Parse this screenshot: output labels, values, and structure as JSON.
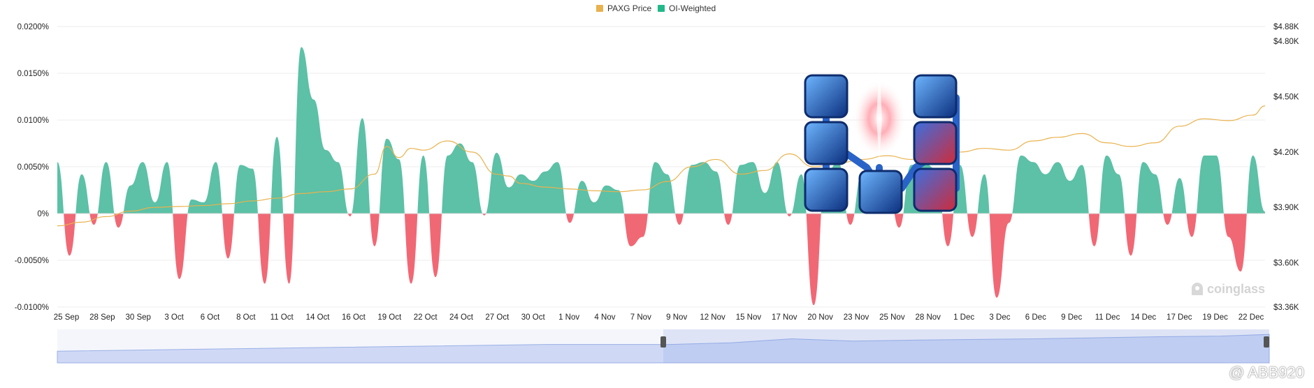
{
  "legend": {
    "price_label": "PAXG Price",
    "oi_label": "OI-Weighted"
  },
  "colors": {
    "price": "#e9b24e",
    "positive": "#5cc1a6",
    "negative": "#f16875",
    "grid": "#ececec",
    "navigator": "#cfd9f6",
    "navigator_line": "#9bb0e6"
  },
  "watermark": "coinglass",
  "credit": "@ ABB920",
  "chart_data": {
    "type": "area",
    "title": "",
    "x_ticks": [
      "25 Sep",
      "28 Sep",
      "30 Sep",
      "3 Oct",
      "6 Oct",
      "8 Oct",
      "11 Oct",
      "14 Oct",
      "16 Oct",
      "19 Oct",
      "22 Oct",
      "24 Oct",
      "27 Oct",
      "30 Oct",
      "1 Nov",
      "4 Nov",
      "7 Nov",
      "9 Nov",
      "12 Nov",
      "15 Nov",
      "17 Nov",
      "20 Nov",
      "23 Nov",
      "25 Nov",
      "28 Nov",
      "1 Dec",
      "3 Dec",
      "6 Dec",
      "9 Dec",
      "11 Dec",
      "14 Dec",
      "17 Dec",
      "19 Dec",
      "22 Dec"
    ],
    "left_axis": {
      "ticks": [
        "0.0200%",
        "0.0150%",
        "0.0100%",
        "0.0050%",
        "0%",
        "-0.0050%",
        "-0.0100%"
      ],
      "tick_values": [
        0.02,
        0.015,
        0.01,
        0.005,
        0,
        -0.005,
        -0.01
      ],
      "range": [
        -0.01,
        0.02
      ]
    },
    "right_axis": {
      "ticks": [
        "$4.88K",
        "$4.80K",
        "$4.50K",
        "$4.20K",
        "$3.90K",
        "$3.60K",
        "$3.36K"
      ],
      "tick_values": [
        4880,
        4800,
        4500,
        4200,
        3900,
        3600,
        3360
      ],
      "range": [
        3360,
        4880
      ]
    },
    "series": [
      {
        "name": "OI-Weighted",
        "axis": "left",
        "x": [
          0,
          1,
          2,
          3,
          4,
          5,
          6,
          7,
          8,
          9,
          10,
          11,
          12,
          13,
          14,
          15,
          16,
          17,
          18,
          19,
          20,
          21,
          22,
          23,
          24,
          25,
          26,
          27,
          28,
          29,
          30,
          31,
          32,
          33,
          34,
          35,
          36,
          37,
          38,
          39,
          40,
          41,
          42,
          43,
          44,
          45,
          46,
          47,
          48,
          49,
          50,
          51,
          52,
          53,
          54,
          55,
          56,
          57,
          58,
          59,
          60,
          61,
          62,
          63,
          64,
          65,
          66,
          67,
          68,
          69,
          70,
          71,
          72,
          73,
          74,
          75,
          76,
          77,
          78,
          79,
          80,
          81,
          82,
          83,
          84,
          85,
          86,
          87,
          88,
          89,
          90,
          91,
          92,
          93,
          94,
          95,
          96,
          97,
          98,
          99
        ],
        "values": [
          0.0055,
          -0.0045,
          0.0042,
          -0.0012,
          0.0055,
          -0.0015,
          0.003,
          0.0055,
          0.0012,
          0.0055,
          -0.007,
          0.0015,
          0.0012,
          0.0055,
          -0.0048,
          0.0052,
          0.0048,
          -0.0075,
          0.0082,
          -0.0075,
          0.0178,
          0.0122,
          0.0068,
          0.0055,
          -0.0003,
          0.0102,
          -0.0035,
          0.008,
          0.0058,
          -0.0075,
          0.0062,
          -0.0068,
          0.0062,
          0.0075,
          0.0055,
          -0.0002,
          0.0065,
          0.0028,
          0.0042,
          0.0035,
          0.0045,
          0.0055,
          -0.001,
          0.0035,
          0.0012,
          0.003,
          0.0025,
          -0.0035,
          -0.0025,
          0.0055,
          0.0042,
          -0.0012,
          0.0052,
          0.0055,
          0.0045,
          -0.0012,
          0.0052,
          0.0055,
          0.0022,
          0.0055,
          -0.0003,
          0.0042,
          -0.0098,
          0.0042,
          0.0055,
          -0.0012,
          0.0045,
          0.0022,
          0.0042,
          -0.0015,
          0.0052,
          0.0055,
          0.0048,
          -0.0035,
          0.0052,
          -0.0025,
          0.0042,
          -0.009,
          -0.001,
          0.0062,
          0.0055,
          0.0042,
          0.0055,
          0.0035,
          0.0052,
          -0.0035,
          0.0062,
          0.0042,
          -0.0045,
          0.0055,
          0.0042,
          -0.0012,
          0.0038,
          -0.0025,
          0.0062,
          0.0062,
          -0.0025,
          -0.0062,
          0.0062,
          0.0002
        ]
      },
      {
        "name": "PAXG Price",
        "axis": "right",
        "x": [
          0,
          2,
          4,
          6,
          8,
          10,
          12,
          14,
          16,
          18,
          20,
          22,
          24,
          26,
          27,
          28,
          29,
          30,
          32,
          34,
          36,
          37,
          38,
          40,
          42,
          44,
          46,
          48,
          50,
          52,
          54,
          56,
          58,
          60,
          62,
          64,
          66,
          68,
          70,
          72,
          74,
          76,
          78,
          80,
          82,
          84,
          86,
          88,
          90,
          92,
          94,
          96,
          98,
          99
        ],
        "values": [
          3800,
          3820,
          3850,
          3880,
          3900,
          3905,
          3910,
          3920,
          3935,
          3950,
          3975,
          3985,
          4000,
          4080,
          4230,
          4170,
          4220,
          4210,
          4260,
          4200,
          4080,
          4070,
          4030,
          4010,
          4000,
          3990,
          3985,
          3995,
          4040,
          4120,
          4160,
          4080,
          4100,
          4190,
          4120,
          4140,
          4160,
          4180,
          4160,
          4170,
          4200,
          4220,
          4210,
          4260,
          4280,
          4300,
          4250,
          4230,
          4250,
          4340,
          4380,
          4370,
          4400,
          4450
        ]
      },
      {
        "name": "Navigator",
        "axis": "nav",
        "x": [
          0,
          10,
          20,
          30,
          40,
          50,
          55,
          60,
          65,
          70,
          75,
          80,
          85,
          90,
          95,
          99
        ],
        "values": [
          0.35,
          0.4,
          0.45,
          0.5,
          0.55,
          0.55,
          0.6,
          0.72,
          0.65,
          0.68,
          0.7,
          0.72,
          0.75,
          0.78,
          0.8,
          0.85
        ]
      }
    ],
    "navigator_selection": [
      0.5,
      1.0
    ],
    "grid": true,
    "legend_position": "top-center"
  }
}
